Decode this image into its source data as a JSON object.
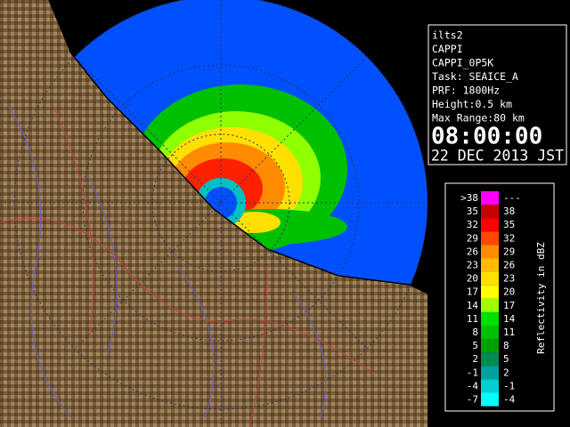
{
  "info": {
    "lines": [
      "ilts2",
      "CAPPI",
      "CAPPI_0P5K",
      "Task: SEAICE_A",
      "PRF: 1800Hz",
      "Height:0.5 km",
      "Max Range:80 km"
    ],
    "time": "08:00:00",
    "date": "22 DEC 2013 JST"
  },
  "legend": {
    "title": "Reflectivity in dBZ",
    "rows": [
      {
        "low": ">38",
        "high": "---",
        "color": "#ff00ff"
      },
      {
        "low": "35",
        "high": "38",
        "color": "#c80000"
      },
      {
        "low": "32",
        "high": "35",
        "color": "#ff0000"
      },
      {
        "low": "29",
        "high": "32",
        "color": "#ff4800"
      },
      {
        "low": "26",
        "high": "29",
        "color": "#ff8c00"
      },
      {
        "low": "23",
        "high": "26",
        "color": "#ffbc00"
      },
      {
        "low": "20",
        "high": "23",
        "color": "#ffe000"
      },
      {
        "low": "17",
        "high": "20",
        "color": "#ffff00"
      },
      {
        "low": "14",
        "high": "17",
        "color": "#a0ff00"
      },
      {
        "low": "11",
        "high": "14",
        "color": "#00e000"
      },
      {
        "low": "8",
        "high": "11",
        "color": "#00c000"
      },
      {
        "low": "5",
        "high": "8",
        "color": "#00a000"
      },
      {
        "low": "2",
        "high": "5",
        "color": "#008c50"
      },
      {
        "low": "-1",
        "high": "2",
        "color": "#00a0a0"
      },
      {
        "low": "-4",
        "high": "-1",
        "color": "#00d0d0"
      },
      {
        "low": "-7",
        "high": "-4",
        "color": "#00ffff"
      }
    ]
  }
}
